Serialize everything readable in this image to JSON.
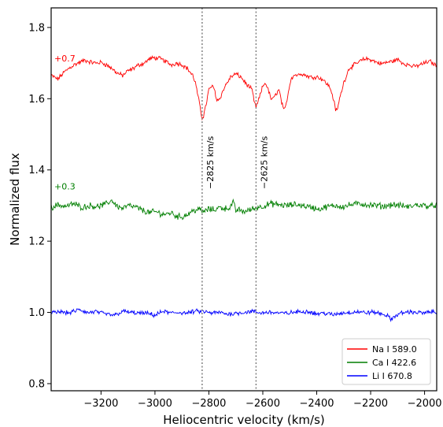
{
  "chart_data": {
    "type": "line",
    "xlabel": "Heliocentric velocity (km/s)",
    "ylabel": "Normalized flux",
    "xlim": [
      -3385,
      -1955
    ],
    "ylim": [
      0.78,
      1.855
    ],
    "x_ticks": [
      -3200,
      -3000,
      -2800,
      -2600,
      -2400,
      -2200,
      -2000
    ],
    "x_tick_labels": [
      "−3200",
      "−3000",
      "−2800",
      "−2600",
      "−2400",
      "−2200",
      "−2000"
    ],
    "y_ticks": [
      0.8,
      1.0,
      1.2,
      1.4,
      1.6,
      1.8
    ],
    "y_tick_labels": [
      "0.8",
      "1.0",
      "1.2",
      "1.4",
      "1.6",
      "1.8"
    ],
    "grid": false,
    "legend_position": "bottom-right",
    "vlines": [
      {
        "x": -2825,
        "label": "−2825 km/s"
      },
      {
        "x": -2625,
        "label": "−2625 km/s"
      }
    ],
    "series": [
      {
        "name": "Na I 589.0",
        "color": "#ff0000",
        "offset_label": "+0.7",
        "label_y": 1.705,
        "x": [
          -3385,
          -3360,
          -3340,
          -3320,
          -3300,
          -3280,
          -3260,
          -3240,
          -3220,
          -3200,
          -3180,
          -3160,
          -3140,
          -3120,
          -3100,
          -3080,
          -3060,
          -3040,
          -3020,
          -3000,
          -2980,
          -2960,
          -2940,
          -2920,
          -2900,
          -2880,
          -2860,
          -2850,
          -2840,
          -2832,
          -2826,
          -2820,
          -2810,
          -2800,
          -2790,
          -2780,
          -2770,
          -2760,
          -2740,
          -2720,
          -2700,
          -2680,
          -2660,
          -2640,
          -2630,
          -2625,
          -2620,
          -2610,
          -2600,
          -2590,
          -2580,
          -2570,
          -2560,
          -2550,
          -2540,
          -2530,
          -2522,
          -2515,
          -2505,
          -2495,
          -2480,
          -2470,
          -2460,
          -2440,
          -2420,
          -2400,
          -2380,
          -2360,
          -2350,
          -2340,
          -2330,
          -2325,
          -2315,
          -2300,
          -2280,
          -2260,
          -2240,
          -2220,
          -2200,
          -2180,
          -2160,
          -2140,
          -2120,
          -2100,
          -2080,
          -2060,
          -2040,
          -2020,
          -2000,
          -1980,
          -1960
        ],
        "y": [
          1.665,
          1.655,
          1.672,
          1.685,
          1.695,
          1.702,
          1.708,
          1.703,
          1.7,
          1.702,
          1.695,
          1.685,
          1.672,
          1.665,
          1.678,
          1.685,
          1.695,
          1.7,
          1.712,
          1.715,
          1.712,
          1.705,
          1.695,
          1.7,
          1.696,
          1.685,
          1.665,
          1.645,
          1.605,
          1.575,
          1.545,
          1.552,
          1.585,
          1.625,
          1.635,
          1.628,
          1.595,
          1.6,
          1.635,
          1.66,
          1.67,
          1.66,
          1.64,
          1.625,
          1.585,
          1.578,
          1.585,
          1.61,
          1.635,
          1.645,
          1.625,
          1.6,
          1.6,
          1.615,
          1.625,
          1.59,
          1.565,
          1.578,
          1.62,
          1.658,
          1.668,
          1.665,
          1.672,
          1.665,
          1.66,
          1.662,
          1.655,
          1.64,
          1.63,
          1.605,
          1.57,
          1.565,
          1.6,
          1.645,
          1.685,
          1.695,
          1.705,
          1.712,
          1.71,
          1.703,
          1.698,
          1.702,
          1.705,
          1.71,
          1.7,
          1.695,
          1.69,
          1.694,
          1.7,
          1.705,
          1.695
        ]
      },
      {
        "name": "Ca I 422.6",
        "color": "#007f00",
        "offset_label": "+0.3",
        "label_y": 1.345,
        "x": [
          -3385,
          -3360,
          -3330,
          -3300,
          -3270,
          -3240,
          -3210,
          -3180,
          -3160,
          -3140,
          -3120,
          -3100,
          -3070,
          -3040,
          -3020,
          -3000,
          -2980,
          -2960,
          -2940,
          -2920,
          -2900,
          -2880,
          -2860,
          -2840,
          -2820,
          -2800,
          -2780,
          -2760,
          -2740,
          -2720,
          -2710,
          -2700,
          -2690,
          -2680,
          -2660,
          -2640,
          -2620,
          -2600,
          -2570,
          -2540,
          -2510,
          -2480,
          -2450,
          -2420,
          -2390,
          -2360,
          -2330,
          -2300,
          -2270,
          -2240,
          -2210,
          -2180,
          -2150,
          -2120,
          -2090,
          -2060,
          -2030,
          -2000,
          -1970,
          -1960
        ],
        "y": [
          1.295,
          1.302,
          1.298,
          1.305,
          1.295,
          1.3,
          1.297,
          1.305,
          1.315,
          1.298,
          1.292,
          1.3,
          1.295,
          1.285,
          1.28,
          1.283,
          1.278,
          1.275,
          1.28,
          1.27,
          1.268,
          1.275,
          1.285,
          1.29,
          1.283,
          1.29,
          1.288,
          1.295,
          1.292,
          1.295,
          1.31,
          1.285,
          1.29,
          1.283,
          1.285,
          1.29,
          1.295,
          1.298,
          1.305,
          1.302,
          1.3,
          1.303,
          1.3,
          1.295,
          1.29,
          1.297,
          1.3,
          1.297,
          1.303,
          1.305,
          1.302,
          1.3,
          1.298,
          1.303,
          1.3,
          1.296,
          1.302,
          1.3,
          1.298,
          1.302
        ]
      },
      {
        "name": "Li I 670.8",
        "color": "#0000ff",
        "x": [
          -3385,
          -3350,
          -3320,
          -3300,
          -3280,
          -3250,
          -3220,
          -3200,
          -3180,
          -3150,
          -3120,
          -3090,
          -3060,
          -3030,
          -3000,
          -2970,
          -2940,
          -2910,
          -2880,
          -2850,
          -2820,
          -2790,
          -2760,
          -2730,
          -2700,
          -2670,
          -2640,
          -2610,
          -2580,
          -2550,
          -2520,
          -2490,
          -2460,
          -2430,
          -2400,
          -2370,
          -2340,
          -2310,
          -2280,
          -2250,
          -2220,
          -2190,
          -2160,
          -2140,
          -2125,
          -2110,
          -2090,
          -2060,
          -2030,
          -2000,
          -1970,
          -1960
        ],
        "y": [
          0.998,
          1.002,
          0.998,
          1.003,
          1.008,
          0.999,
          1.002,
          0.998,
          0.995,
          0.992,
          1.003,
          1.0,
          0.998,
          0.997,
          0.992,
          1.003,
          0.998,
          1.0,
          0.998,
          1.003,
          1.002,
          0.998,
          1.0,
          0.995,
          0.998,
          1.0,
          1.003,
          0.998,
          1.001,
          0.999,
          0.997,
          1.0,
          1.002,
          1.003,
          0.996,
          0.998,
          0.993,
          0.998,
          1.0,
          1.002,
          0.999,
          1.001,
          0.996,
          0.992,
          0.98,
          0.99,
          0.997,
          1.002,
          1.0,
          0.998,
          1.002,
          1.0
        ]
      }
    ]
  }
}
